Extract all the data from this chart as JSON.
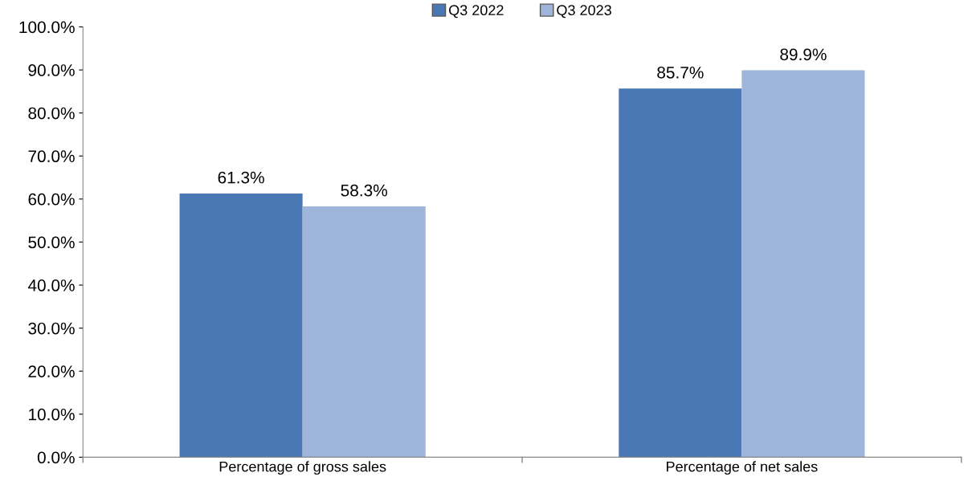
{
  "chart_data": {
    "type": "bar",
    "categories": [
      "Percentage of gross sales",
      "Percentage of net sales"
    ],
    "series": [
      {
        "name": "Q3 2022",
        "color": "#4a78b5",
        "values": [
          61.3,
          85.7
        ],
        "value_labels": [
          "61.3%",
          "85.7%"
        ]
      },
      {
        "name": "Q3 2023",
        "color": "#9fb5d9",
        "values": [
          58.3,
          89.9
        ],
        "value_labels": [
          "58.3%",
          "89.9%"
        ]
      }
    ],
    "ylim": [
      0,
      100
    ],
    "yticks": [
      {
        "value": 0,
        "label": "0.0%"
      },
      {
        "value": 10,
        "label": "10.0%"
      },
      {
        "value": 20,
        "label": "20.0%"
      },
      {
        "value": 30,
        "label": "30.0%"
      },
      {
        "value": 40,
        "label": "40.0%"
      },
      {
        "value": 50,
        "label": "50.0%"
      },
      {
        "value": 60,
        "label": "60.0%"
      },
      {
        "value": 70,
        "label": "70.0%"
      },
      {
        "value": 80,
        "label": "80.0%"
      },
      {
        "value": 90,
        "label": "90.0%"
      },
      {
        "value": 100,
        "label": "100.0%"
      }
    ],
    "grid": false,
    "legend": "top"
  }
}
